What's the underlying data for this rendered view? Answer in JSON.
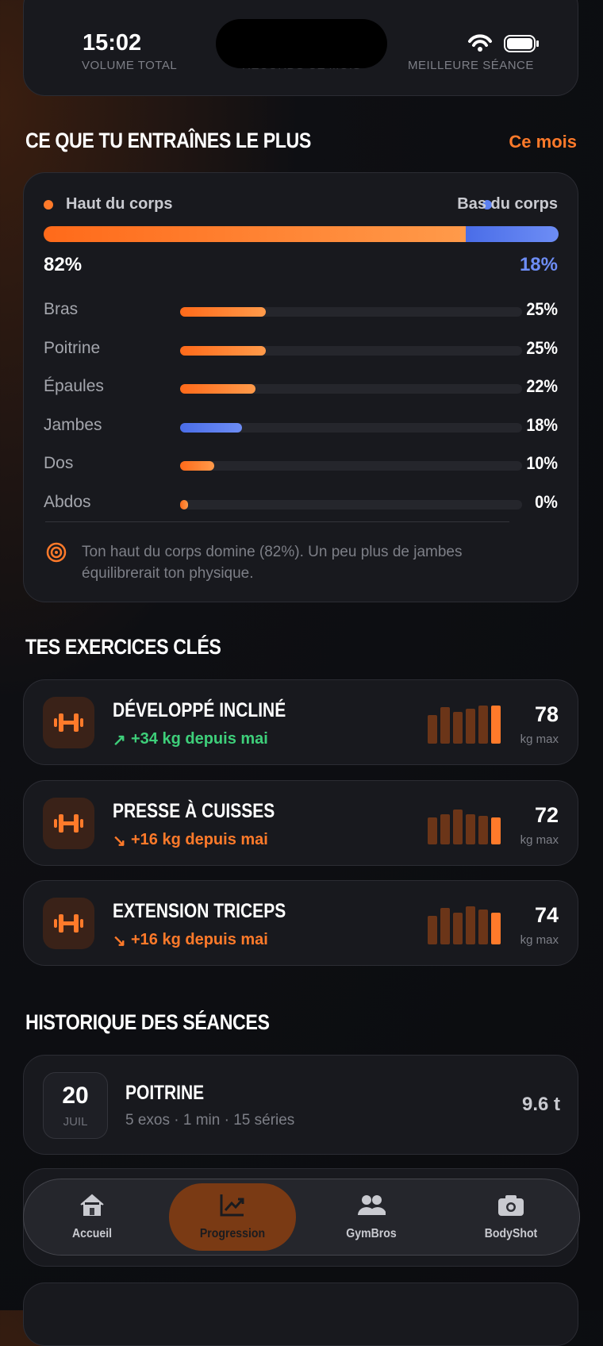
{
  "status_bar": {
    "time": "15:02"
  },
  "summary": {
    "labels": [
      "VOLUME TOTAL",
      "RECORDS CE MOIS",
      "MEILLEURE SÉANCE"
    ]
  },
  "focus": {
    "title": "CE QUE TU ENTRAÎNES LE PLUS",
    "period": "Ce mois",
    "upper": {
      "name": "Haut du corps",
      "value": 82,
      "label": "82%"
    },
    "lower": {
      "name": "Bas du corps",
      "value": 18,
      "label": "18%"
    },
    "rows": [
      {
        "name": "Bras",
        "value": 25,
        "label": "25%",
        "group": "upper"
      },
      {
        "name": "Poitrine",
        "value": 25,
        "label": "25%",
        "group": "upper"
      },
      {
        "name": "Épaules",
        "value": 22,
        "label": "22%",
        "group": "upper"
      },
      {
        "name": "Jambes",
        "value": 18,
        "label": "18%",
        "group": "lower"
      },
      {
        "name": "Dos",
        "value": 10,
        "label": "10%",
        "group": "upper"
      },
      {
        "name": "Abdos",
        "value": 0,
        "label": "0%",
        "group": "upper"
      }
    ],
    "insight": "Ton haut du corps domine (82%). Un peu plus de jambes équilibrerait ton physique."
  },
  "exercises": {
    "title": "TES EXERCICES CLÉS",
    "items": [
      {
        "name": "DÉVELOPPÉ INCLINÉ",
        "arrow": "↗",
        "delta": "+34 kg depuis mai",
        "trend_color": "#3ecf7a",
        "max": "78",
        "unit": "kg max"
      },
      {
        "name": "PRESSE À CUISSES",
        "arrow": "↘",
        "delta": "+16 kg depuis mai",
        "trend_color": "#ff7a2a",
        "max": "72",
        "unit": "kg max"
      },
      {
        "name": "EXTENSION TRICEPS",
        "arrow": "↘",
        "delta": "+16 kg depuis mai",
        "trend_color": "#ff7a2a",
        "max": "74",
        "unit": "kg max"
      }
    ]
  },
  "history": {
    "title": "HISTORIQUE DES SÉANCES",
    "sessions": [
      {
        "day": "20",
        "month": "JUIL",
        "name": "POITRINE",
        "details": "5 exos · 1 min · 15 séries",
        "volume": "9.6 t"
      }
    ]
  },
  "nav": {
    "items": [
      "Accueil",
      "Progression",
      "GymBros",
      "BodyShot"
    ],
    "active": 1
  }
}
